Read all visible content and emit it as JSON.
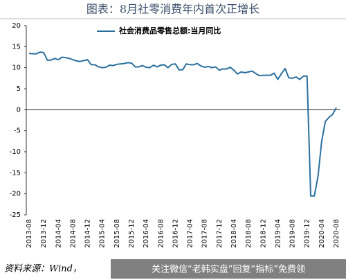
{
  "chart_data": {
    "type": "line",
    "title": "图表：8月社零消费年内首次正增长",
    "categories": [
      "2013-08",
      null,
      null,
      null,
      "2013-12",
      null,
      null,
      null,
      "2014-04",
      null,
      null,
      null,
      "2014-08",
      null,
      null,
      null,
      "2014-12",
      null,
      null,
      null,
      "2015-04",
      null,
      null,
      null,
      "2015-08",
      null,
      null,
      null,
      "2015-12",
      null,
      null,
      null,
      "2016-04",
      null,
      null,
      null,
      "2016-08",
      null,
      null,
      null,
      "2016-12",
      null,
      null,
      null,
      "2017-04",
      null,
      null,
      null,
      "2017-08",
      null,
      null,
      null,
      "2017-12",
      null,
      null,
      null,
      "2018-04",
      null,
      null,
      null,
      "2018-08",
      null,
      null,
      null,
      "2018-12",
      null,
      null,
      null,
      "2019-04",
      null,
      null,
      null,
      "2019-08",
      null,
      null,
      null,
      "2019-12",
      null,
      null,
      null,
      "2020-04",
      null,
      null,
      null,
      "2020-08"
    ],
    "series": [
      {
        "name": "社会消费品零售总额:当月同比",
        "color": "#2a6f9e",
        "values": [
          13.4,
          13.3,
          13.3,
          13.7,
          13.6,
          11.8,
          11.8,
          12.2,
          11.9,
          12.5,
          12.4,
          12.2,
          11.9,
          11.6,
          11.5,
          11.7,
          11.9,
          10.7,
          10.7,
          10.2,
          10.0,
          10.1,
          10.6,
          10.5,
          10.8,
          10.9,
          11.0,
          11.2,
          11.1,
          10.2,
          10.2,
          10.5,
          10.1,
          10.0,
          10.6,
          10.2,
          10.6,
          10.7,
          10.0,
          10.8,
          10.9,
          9.5,
          9.5,
          10.9,
          10.7,
          10.7,
          11.0,
          10.4,
          10.1,
          10.3,
          10.0,
          10.2,
          9.4,
          9.7,
          9.7,
          10.1,
          9.4,
          8.5,
          9.0,
          8.8,
          9.0,
          9.2,
          8.6,
          8.1,
          8.2,
          8.2,
          8.2,
          8.7,
          7.2,
          8.6,
          9.8,
          7.6,
          7.5,
          7.8,
          7.2,
          8.0,
          8.0,
          -20.5,
          -20.5,
          -15.8,
          -7.5,
          -2.8,
          -1.8,
          -1.1,
          0.5
        ]
      }
    ],
    "ylim": [
      20,
      -25
    ],
    "yticks": [
      20,
      15,
      10,
      5,
      0,
      -5,
      -10,
      -15,
      -20,
      -25
    ],
    "source": "资料来源：Wind，",
    "watermark": "关注微信“老韩实盘”回复“指标”免费领"
  }
}
